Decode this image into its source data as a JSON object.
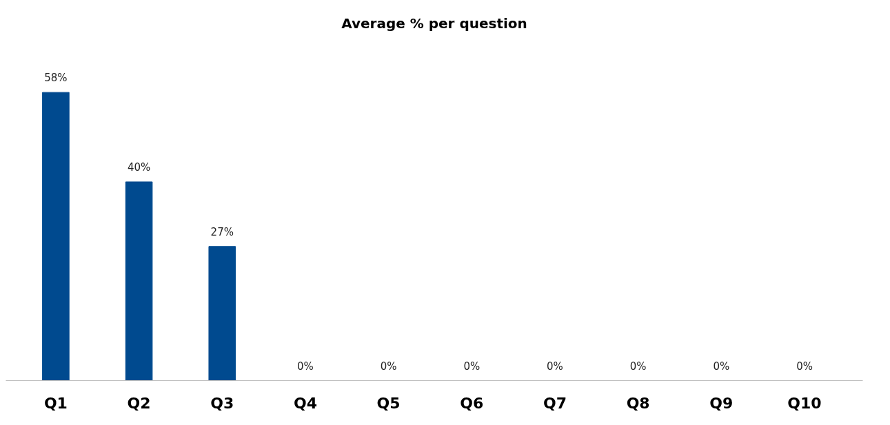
{
  "chart_data": {
    "type": "bar",
    "title": "Average % per question",
    "categories": [
      "Q1",
      "Q2",
      "Q3",
      "Q4",
      "Q5",
      "Q6",
      "Q7",
      "Q8",
      "Q9",
      "Q10"
    ],
    "values": [
      58,
      40,
      27,
      0,
      0,
      0,
      0,
      0,
      0,
      0
    ],
    "value_labels": [
      "58%",
      "40%",
      "27%",
      "0%",
      "0%",
      "0%",
      "0%",
      "0%",
      "0%",
      "0%"
    ],
    "color": "#004a8f",
    "grid": false
  }
}
